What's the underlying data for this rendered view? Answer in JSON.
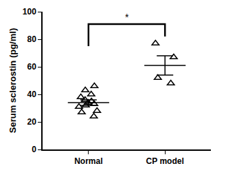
{
  "chart_data": {
    "type": "scatter",
    "ylabel": "Serum sclerostin (pg/ml)",
    "categories": [
      "Normal",
      "CP model"
    ],
    "groups": [
      {
        "name": "Normal",
        "values": [
          46,
          43,
          40,
          38,
          36,
          35,
          34,
          33,
          32,
          31,
          28,
          27,
          24
        ],
        "mean": 34,
        "error": 2
      },
      {
        "name": "CP model",
        "values": [
          77,
          67,
          52,
          48
        ],
        "mean": 61,
        "error": 7
      }
    ],
    "color": "#000000",
    "marker": "triangle-up-open",
    "ylim": [
      0,
      100
    ],
    "yticks": [
      0,
      20,
      40,
      60,
      80,
      100
    ],
    "grid": false,
    "annotations": [
      {
        "text": "*",
        "between": [
          "Normal",
          "CP model"
        ]
      }
    ]
  }
}
